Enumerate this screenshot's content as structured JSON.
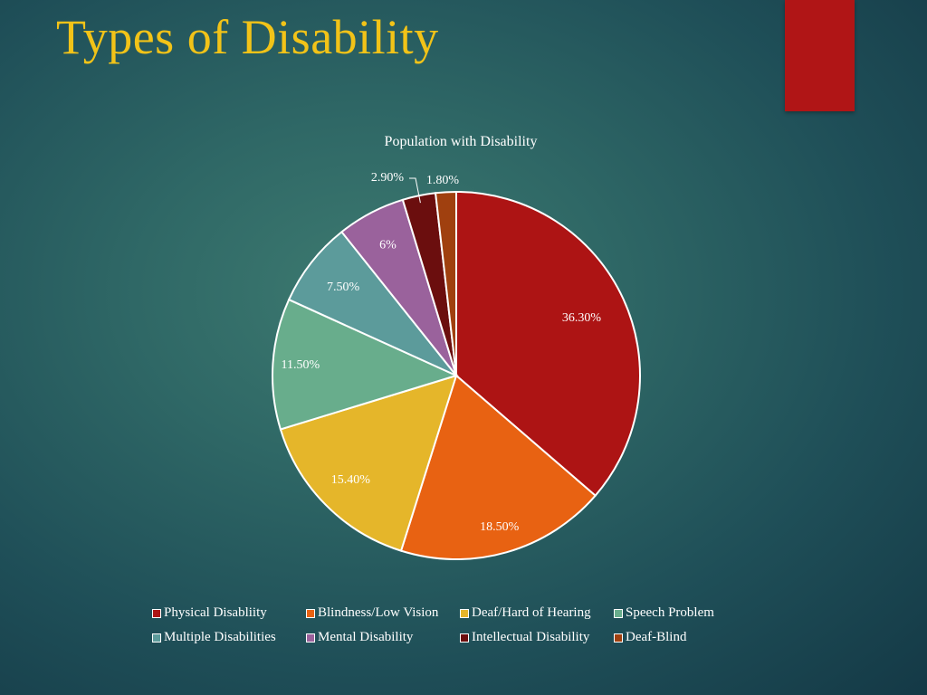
{
  "slide": {
    "title": "Types of Disability",
    "accent_color": "#b01516",
    "title_color": "#f2c318"
  },
  "chart_data": {
    "type": "pie",
    "title": "Population with Disability",
    "legend_position": "bottom",
    "slices": [
      {
        "name": "Physical Disabliity",
        "value": 36.3,
        "label": "36.30%",
        "color": "#ad1414"
      },
      {
        "name": "Blindness/Low Vision",
        "value": 18.5,
        "label": "18.50%",
        "color": "#e86212"
      },
      {
        "name": "Deaf/Hard of Hearing",
        "value": 15.4,
        "label": "15.40%",
        "color": "#e5b62a"
      },
      {
        "name": "Speech Problem",
        "value": 11.5,
        "label": "11.50%",
        "color": "#68ad8c"
      },
      {
        "name": "Multiple Disabilities",
        "value": 7.5,
        "label": "7.50%",
        "color": "#5c9b9b"
      },
      {
        "name": "Mental Disability",
        "value": 6,
        "label": "6%",
        "color": "#9a629c"
      },
      {
        "name": "Intellectual Disability",
        "value": 2.9,
        "label": "2.90%",
        "color": "#6b0e0e"
      },
      {
        "name": "Deaf-Blind",
        "value": 1.8,
        "label": "1.80%",
        "color": "#a0400f"
      }
    ]
  }
}
